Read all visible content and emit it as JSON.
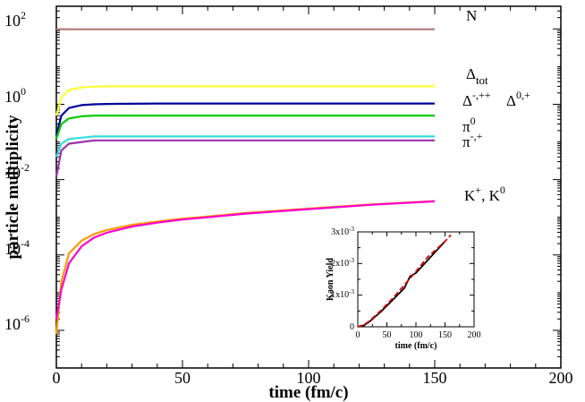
{
  "chart_data": [
    {
      "type": "line",
      "xlabel": "time (fm/c)",
      "ylabel": "particle multiplicity",
      "xlim": [
        0,
        200
      ],
      "ylim": [
        1e-07,
        400
      ],
      "yscale": "log",
      "x_ticks": [
        "0",
        "50",
        "100",
        "150",
        "200"
      ],
      "y_ticks": [
        {
          "base": "10",
          "exp": "2"
        },
        {
          "base": "10",
          "exp": "0"
        },
        {
          "base": "10",
          "exp": "-2"
        },
        {
          "base": "10",
          "exp": "-4"
        },
        {
          "base": "10",
          "exp": "-6"
        }
      ],
      "grid": false,
      "series": [
        {
          "name": "N",
          "label": {
            "main": "N",
            "sub": "",
            "sup": ""
          },
          "color": "#b07878",
          "x": [
            0,
            150
          ],
          "y": [
            98,
            98
          ]
        },
        {
          "name": "Δtot",
          "label": {
            "main": "Δ",
            "sub": "tot",
            "sup": ""
          },
          "color": "#ffff33",
          "x": [
            0,
            2,
            5,
            10,
            15,
            20,
            40,
            60,
            80,
            100,
            120,
            150
          ],
          "y": [
            0.5,
            1.5,
            2.4,
            2.8,
            2.95,
            3.0,
            3.0,
            3.0,
            3.0,
            3.0,
            3.0,
            3.0
          ]
        },
        {
          "name": "Δ-,++",
          "label": {
            "main": "Δ",
            "sub": "",
            "sup": "-,++"
          },
          "color": "#000099",
          "x": [
            0,
            2,
            5,
            10,
            15,
            20,
            40,
            60,
            80,
            100,
            120,
            150
          ],
          "y": [
            0.15,
            0.5,
            0.8,
            0.95,
            1.0,
            1.02,
            1.05,
            1.05,
            1.05,
            1.05,
            1.05,
            1.05
          ]
        },
        {
          "name": "Δ0,+",
          "label": {
            "main": "Δ",
            "sub": "",
            "sup": "0,+"
          },
          "color": "#00cc00",
          "x": [
            0,
            2,
            5,
            10,
            15,
            20,
            40,
            60,
            80,
            100,
            120,
            150
          ],
          "y": [
            0.12,
            0.3,
            0.42,
            0.48,
            0.5,
            0.5,
            0.5,
            0.5,
            0.5,
            0.5,
            0.5,
            0.5
          ]
        },
        {
          "name": "π0",
          "label": {
            "main": "π",
            "sub": "",
            "sup": "0"
          },
          "color": "#33dddd",
          "x": [
            0,
            2,
            5,
            10,
            15,
            20,
            40,
            60,
            80,
            100,
            120,
            150
          ],
          "y": [
            0.04,
            0.09,
            0.12,
            0.13,
            0.14,
            0.14,
            0.14,
            0.14,
            0.14,
            0.14,
            0.14,
            0.14
          ]
        },
        {
          "name": "π-,+",
          "label": {
            "main": "π",
            "sub": "",
            "sup": "-,+"
          },
          "color": "#9933aa",
          "x": [
            0,
            2,
            5,
            10,
            15,
            20,
            40,
            60,
            80,
            100,
            120,
            150
          ],
          "y": [
            0.012,
            0.06,
            0.09,
            0.1,
            0.11,
            0.11,
            0.11,
            0.11,
            0.11,
            0.11,
            0.11,
            0.11
          ]
        },
        {
          "name": "K+, K0 (orange)",
          "label": {
            "main": "K",
            "sub": "",
            "sup": "+",
            "tail": ", K",
            "tail_sup": "0"
          },
          "color": "#ff9900",
          "x": [
            0,
            2,
            5,
            10,
            15,
            20,
            30,
            40,
            50,
            60,
            75,
            100,
            125,
            150
          ],
          "y": [
            8e-07,
            2e-05,
            0.00011,
            0.00024,
            0.00036,
            0.00046,
            0.00063,
            0.00077,
            0.00092,
            0.00105,
            0.0013,
            0.0017,
            0.0022,
            0.0027
          ]
        },
        {
          "name": "K+, K0 (magenta)",
          "color": "#ff00cc",
          "x": [
            0,
            2,
            5,
            10,
            15,
            20,
            30,
            40,
            50,
            60,
            75,
            100,
            125,
            150
          ],
          "y": [
            2e-06,
            1.2e-05,
            6e-05,
            0.00017,
            0.00029,
            0.00039,
            0.00057,
            0.00072,
            0.00087,
            0.001,
            0.00125,
            0.00165,
            0.00215,
            0.00265
          ]
        }
      ]
    },
    {
      "type": "line",
      "xlabel": "time (fm/c)",
      "ylabel": "Kaon Yield",
      "xlim": [
        0,
        200
      ],
      "ylim": [
        0,
        0.003
      ],
      "x_ticks": [
        "0",
        "50",
        "100",
        "150",
        "200"
      ],
      "y_ticks": [
        {
          "base": "0",
          "exp": ""
        },
        {
          "base": "1x10",
          "exp": "-3"
        },
        {
          "base": "2x10",
          "exp": "-3"
        },
        {
          "base": "3x10",
          "exp": "-3"
        }
      ],
      "grid": false,
      "series": [
        {
          "name": "solid black",
          "color": "#000000",
          "dashed": false,
          "x": [
            0,
            10,
            20,
            40,
            60,
            80,
            90,
            100,
            120,
            150
          ],
          "y": [
            0,
            4e-05,
            0.00016,
            0.00048,
            0.00085,
            0.00122,
            0.0016,
            0.0017,
            0.0021,
            0.0027
          ]
        },
        {
          "name": "dashed red",
          "color": "#dd0000",
          "dashed": true,
          "x": [
            0,
            10,
            20,
            40,
            60,
            80,
            100,
            120,
            150,
            160
          ],
          "y": [
            0,
            6e-05,
            0.00018,
            0.00052,
            0.0009,
            0.00132,
            0.00175,
            0.0022,
            0.0027,
            0.0029
          ]
        }
      ]
    }
  ]
}
